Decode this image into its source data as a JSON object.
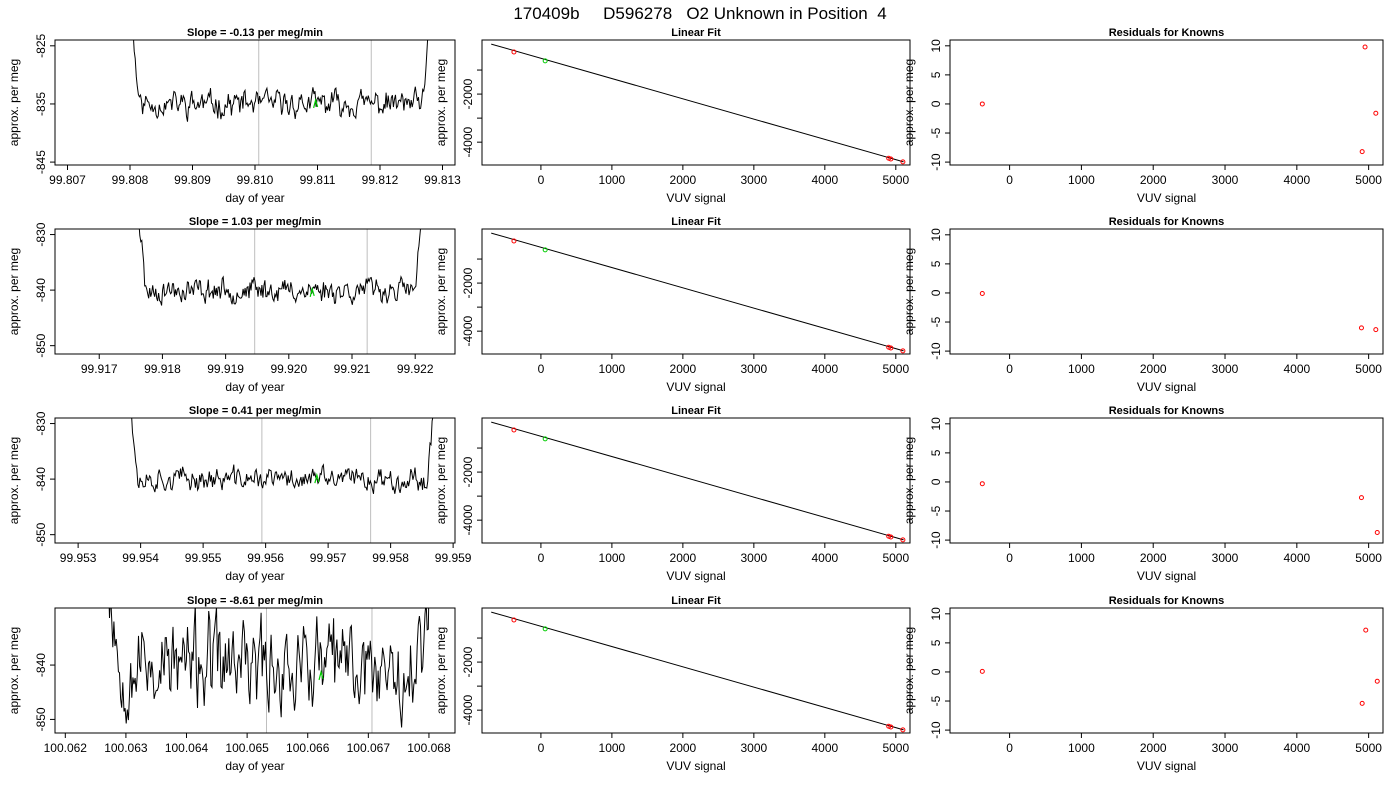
{
  "title": "170409b     D596278   O2 Unknown in Position  4",
  "colors": {
    "trace": "#000000",
    "marker": "#ff0000",
    "unknown": "#00cc00",
    "vline": "#bebebe",
    "fit": "#000000"
  },
  "chart_data": [
    {
      "type": "line",
      "panel": "trace",
      "row": 0,
      "title": "Slope =  -0.13  per meg/min",
      "xlabel": "day of year",
      "ylabel": "approx. per meg",
      "xlim": [
        99.8068,
        99.8132
      ],
      "ylim": [
        -845.5,
        -824
      ],
      "xticks": [
        "99.807",
        "99.808",
        "99.809",
        "99.810",
        "99.811",
        "99.812",
        "99.813"
      ],
      "xtick_values": [
        99.807,
        99.808,
        99.809,
        99.81,
        99.811,
        99.812,
        99.813
      ],
      "yticks": [
        -845,
        -835,
        -825
      ],
      "x_start": 99.8079,
      "x_end": 99.8129,
      "n_points": 300,
      "mean": -835,
      "noise": 2.3,
      "seed": 11,
      "vlines": [
        99.81006,
        99.81186
      ],
      "marker": {
        "x": 99.81097,
        "y": -835
      }
    },
    {
      "type": "scatter",
      "panel": "fit",
      "row": 0,
      "title": "Linear Fit",
      "xlabel": "VUV signal",
      "ylabel": "approx. per meg",
      "xlim": [
        -830,
        5200
      ],
      "ylim": [
        -4950,
        250
      ],
      "xticks": [
        0,
        1000,
        2000,
        3000,
        4000,
        5000
      ],
      "yticks": [
        -4000,
        -2000
      ],
      "yminor": [
        -3000,
        -1000
      ],
      "line": {
        "x": [
          -700,
          5110
        ],
        "y": [
          80,
          -4820
        ]
      },
      "points": [
        {
          "x": -380,
          "y": -250,
          "color": "red"
        },
        {
          "x": 4900,
          "y": -4670,
          "color": "red"
        },
        {
          "x": 4930,
          "y": -4700,
          "color": "red"
        },
        {
          "x": 5100,
          "y": -4820,
          "color": "red"
        },
        {
          "x": 60,
          "y": -620,
          "color": "green"
        }
      ]
    },
    {
      "type": "scatter",
      "panel": "residuals",
      "row": 0,
      "title": "Residuals for Knowns",
      "xlabel": "VUV signal",
      "ylabel": "approx. per meg",
      "xlim": [
        -830,
        5200
      ],
      "ylim": [
        -10.5,
        11
      ],
      "xticks": [
        0,
        1000,
        2000,
        3000,
        4000,
        5000
      ],
      "yticks": [
        -10,
        -5,
        0,
        5,
        10
      ],
      "points": [
        {
          "x": -380,
          "y": 0.0
        },
        {
          "x": 4910,
          "y": -8.2
        },
        {
          "x": 4950,
          "y": 9.8
        },
        {
          "x": 5100,
          "y": -1.6
        }
      ]
    },
    {
      "type": "line",
      "panel": "trace",
      "row": 1,
      "title": "Slope =  1.03  per meg/min",
      "xlabel": "day of year",
      "ylabel": "approx. per meg",
      "xlim": [
        99.9163,
        99.92263
      ],
      "ylim": [
        -851.5,
        -829
      ],
      "xticks": [
        "99.917",
        "99.918",
        "99.919",
        "99.920",
        "99.921",
        "99.922"
      ],
      "xtick_values": [
        99.917,
        99.918,
        99.919,
        99.92,
        99.921,
        99.922
      ],
      "yticks": [
        -850,
        -840,
        -830
      ],
      "x_start": 99.9175,
      "x_end": 99.9222,
      "n_points": 300,
      "mean": -840,
      "noise": 2.2,
      "seed": 23,
      "vlines": [
        99.91946,
        99.92124
      ],
      "marker": {
        "x": 99.92037,
        "y": -840.5
      }
    },
    {
      "type": "scatter",
      "panel": "fit",
      "row": 1,
      "title": "Linear Fit",
      "xlabel": "VUV signal",
      "ylabel": "approx. per meg",
      "xlim": [
        -830,
        5200
      ],
      "ylim": [
        -4950,
        250
      ],
      "xticks": [
        0,
        1000,
        2000,
        3000,
        4000,
        5000
      ],
      "yticks": [
        -4000,
        -2000
      ],
      "yminor": [
        -3000,
        -1000
      ],
      "line": {
        "x": [
          -700,
          5110
        ],
        "y": [
          80,
          -4820
        ]
      },
      "points": [
        {
          "x": -380,
          "y": -250,
          "color": "red"
        },
        {
          "x": 4900,
          "y": -4670,
          "color": "red"
        },
        {
          "x": 4930,
          "y": -4700,
          "color": "red"
        },
        {
          "x": 5100,
          "y": -4820,
          "color": "red"
        },
        {
          "x": 60,
          "y": -620,
          "color": "green"
        }
      ]
    },
    {
      "type": "scatter",
      "panel": "residuals",
      "row": 1,
      "title": "Residuals for Knowns",
      "xlabel": "VUV signal",
      "ylabel": "approx. per meg",
      "xlim": [
        -830,
        5200
      ],
      "ylim": [
        -10.5,
        11
      ],
      "xticks": [
        0,
        1000,
        2000,
        3000,
        4000,
        5000
      ],
      "yticks": [
        -10,
        -5,
        0,
        5,
        10
      ],
      "points": [
        {
          "x": -380,
          "y": -0.1
        },
        {
          "x": 4900,
          "y": -6.0
        },
        {
          "x": 5100,
          "y": -6.3
        }
      ]
    },
    {
      "type": "line",
      "panel": "trace",
      "row": 2,
      "title": "Slope =  0.41  per meg/min",
      "xlabel": "day of year",
      "ylabel": "approx. per meg",
      "xlim": [
        99.95263,
        99.95903
      ],
      "ylim": [
        -851.5,
        -829
      ],
      "xticks": [
        "99.953",
        "99.954",
        "99.955",
        "99.956",
        "99.957",
        "99.958",
        "99.959"
      ],
      "xtick_values": [
        99.953,
        99.954,
        99.955,
        99.956,
        99.957,
        99.958,
        99.959
      ],
      "yticks": [
        -850,
        -840,
        -830
      ],
      "x_start": 99.9537,
      "x_end": 99.9588,
      "n_points": 300,
      "mean": -840,
      "noise": 2.1,
      "seed": 37,
      "vlines": [
        99.95594,
        99.95768
      ],
      "marker": {
        "x": 99.95682,
        "y": -840
      }
    },
    {
      "type": "scatter",
      "panel": "fit",
      "row": 2,
      "title": "Linear Fit",
      "xlabel": "VUV signal",
      "ylabel": "approx. per meg",
      "xlim": [
        -830,
        5200
      ],
      "ylim": [
        -4950,
        250
      ],
      "xticks": [
        0,
        1000,
        2000,
        3000,
        4000,
        5000
      ],
      "yticks": [
        -4000,
        -2000
      ],
      "yminor": [
        -3000,
        -1000
      ],
      "line": {
        "x": [
          -700,
          5110
        ],
        "y": [
          80,
          -4820
        ]
      },
      "points": [
        {
          "x": -380,
          "y": -250,
          "color": "red"
        },
        {
          "x": 4900,
          "y": -4670,
          "color": "red"
        },
        {
          "x": 4930,
          "y": -4700,
          "color": "red"
        },
        {
          "x": 5100,
          "y": -4820,
          "color": "red"
        },
        {
          "x": 60,
          "y": -620,
          "color": "green"
        }
      ]
    },
    {
      "type": "scatter",
      "panel": "residuals",
      "row": 2,
      "title": "Residuals for Knowns",
      "xlabel": "VUV signal",
      "ylabel": "approx. per meg",
      "xlim": [
        -830,
        5200
      ],
      "ylim": [
        -10.5,
        11
      ],
      "xticks": [
        0,
        1000,
        2000,
        3000,
        4000,
        5000
      ],
      "yticks": [
        -10,
        -5,
        0,
        5,
        10
      ],
      "points": [
        {
          "x": -380,
          "y": -0.3
        },
        {
          "x": 4900,
          "y": -2.7
        },
        {
          "x": 5120,
          "y": -8.7
        }
      ]
    },
    {
      "type": "line",
      "panel": "trace",
      "row": 3,
      "title": "Slope =  -8.61  per meg/min",
      "xlabel": "day of year",
      "ylabel": "approx. per meg",
      "xlim": [
        100.06183,
        100.06843
      ],
      "ylim": [
        -852.5,
        -829.5
      ],
      "xticks": [
        "100.062",
        "100.063",
        "100.064",
        "100.065",
        "100.066",
        "100.067",
        "100.068"
      ],
      "xtick_values": [
        100.062,
        100.063,
        100.064,
        100.065,
        100.066,
        100.067,
        100.068
      ],
      "yticks": [
        -850,
        -840
      ],
      "x_start": 100.0626,
      "x_end": 100.0681,
      "n_points": 300,
      "mean": -840,
      "noise": 8.5,
      "seed": 53,
      "vlines": [
        100.06532,
        100.06706
      ],
      "marker": {
        "x": 100.06622,
        "y": -842
      }
    },
    {
      "type": "scatter",
      "panel": "fit",
      "row": 3,
      "title": "Linear Fit",
      "xlabel": "VUV signal",
      "ylabel": "approx. per meg",
      "xlim": [
        -830,
        5200
      ],
      "ylim": [
        -4950,
        250
      ],
      "xticks": [
        0,
        1000,
        2000,
        3000,
        4000,
        5000
      ],
      "yticks": [
        -4000,
        -2000
      ],
      "yminor": [
        -3000,
        -1000
      ],
      "line": {
        "x": [
          -700,
          5110
        ],
        "y": [
          80,
          -4820
        ]
      },
      "points": [
        {
          "x": -380,
          "y": -250,
          "color": "red"
        },
        {
          "x": 4900,
          "y": -4670,
          "color": "red"
        },
        {
          "x": 4930,
          "y": -4700,
          "color": "red"
        },
        {
          "x": 5100,
          "y": -4820,
          "color": "red"
        },
        {
          "x": 60,
          "y": -620,
          "color": "green"
        }
      ]
    },
    {
      "type": "scatter",
      "panel": "residuals",
      "row": 3,
      "title": "Residuals for Knowns",
      "xlabel": "VUV signal",
      "ylabel": "approx. per meg",
      "xlim": [
        -830,
        5200
      ],
      "ylim": [
        -10.5,
        11
      ],
      "xticks": [
        0,
        1000,
        2000,
        3000,
        4000,
        5000
      ],
      "yticks": [
        -10,
        -5,
        0,
        5,
        10
      ],
      "points": [
        {
          "x": -380,
          "y": 0.1
        },
        {
          "x": 4910,
          "y": -5.4
        },
        {
          "x": 4960,
          "y": 7.2
        },
        {
          "x": 5120,
          "y": -1.6
        }
      ]
    }
  ]
}
